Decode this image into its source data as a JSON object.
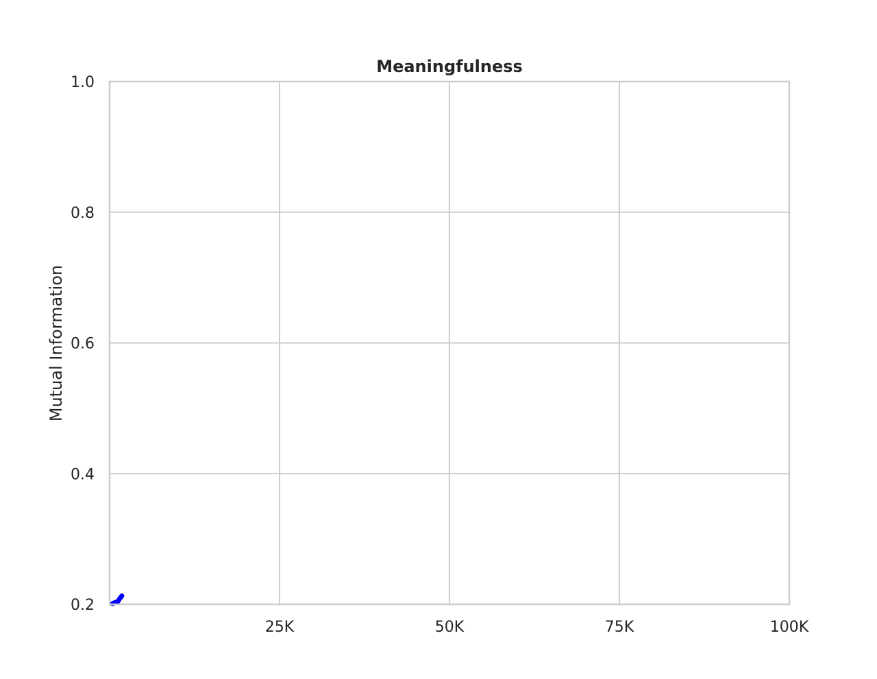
{
  "chart_data": {
    "type": "line",
    "title": "Meaningfulness",
    "xlabel": "",
    "ylabel": "Mutual Information",
    "xlim": [
      0,
      100000
    ],
    "ylim": [
      0.2,
      1.0
    ],
    "x_ticks": [
      25000,
      50000,
      75000,
      100000
    ],
    "x_tick_labels": [
      "25K",
      "50K",
      "75K",
      "100K"
    ],
    "y_ticks": [
      0.2,
      0.4,
      0.6,
      0.8,
      1.0
    ],
    "y_tick_labels": [
      "0.2",
      "0.4",
      "0.6",
      "0.8",
      "1.0"
    ],
    "grid": true,
    "legend": "none",
    "series": [
      {
        "color": "#0000ff",
        "x": [
          400,
          800,
          1200,
          1500,
          1800
        ],
        "y": [
          0.201,
          0.203,
          0.204,
          0.209,
          0.213
        ]
      }
    ]
  }
}
